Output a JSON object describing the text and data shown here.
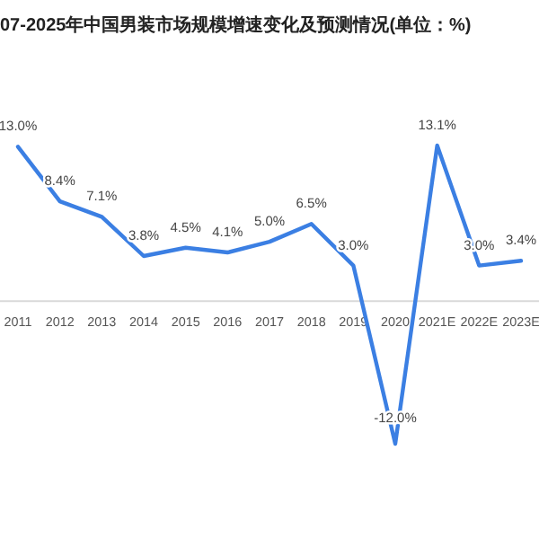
{
  "chart_data": {
    "type": "line",
    "title": "07-2025年中国男装市场规模增速变化及预测情况(单位：%)",
    "categories": [
      "2011",
      "2012",
      "2013",
      "2014",
      "2015",
      "2016",
      "2017",
      "2018",
      "2019",
      "2020",
      "2021E",
      "2022E",
      "2023E"
    ],
    "series": [
      {
        "color": "#3b7fe3",
        "values": [
          13.0,
          8.4,
          7.1,
          3.8,
          4.5,
          4.1,
          5.0,
          6.5,
          3.0,
          -12.0,
          13.1,
          3.0,
          3.4
        ],
        "value_labels": [
          "13.0%",
          "8.4%",
          "7.1%",
          "3.8%",
          "4.5%",
          "4.1%",
          "5.0%",
          "6.5%",
          "3.0%",
          "-12.0%",
          "13.1%",
          "3.0%",
          "3.4%"
        ]
      }
    ],
    "marker": "none",
    "line_style": "solid"
  }
}
